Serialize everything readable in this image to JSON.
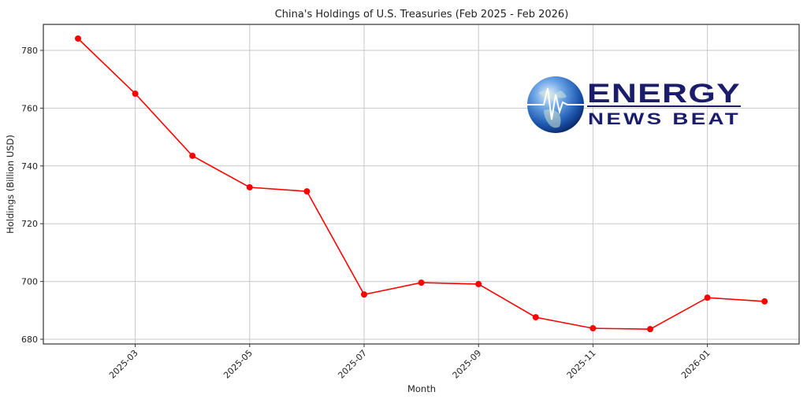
{
  "chart_data": {
    "type": "line",
    "title": "China's Holdings of U.S. Treasuries (Feb 2025 - Feb 2026)",
    "xlabel": "Month",
    "ylabel": "Holdings (Billion USD)",
    "x": [
      "2025-02",
      "2025-03",
      "2025-04",
      "2025-05",
      "2025-06",
      "2025-07",
      "2025-08",
      "2025-09",
      "2025-10",
      "2025-11",
      "2025-12",
      "2026-01",
      "2026-02"
    ],
    "series": [
      {
        "name": "Holdings",
        "color": "#ff0000",
        "marker": "circle",
        "values": [
          784.1,
          765.0,
          743.5,
          732.6,
          731.2,
          695.5,
          699.6,
          699.1,
          687.6,
          683.8,
          683.5,
          694.4,
          693.1
        ]
      }
    ],
    "x_tick_labels": [
      "2025-03",
      "2025-05",
      "2025-07",
      "2025-09",
      "2025-11",
      "2026-01"
    ],
    "y_ticks": [
      680,
      700,
      720,
      740,
      760,
      780
    ],
    "ylim": [
      678.3,
      788.8
    ],
    "grid": true,
    "legend": null
  },
  "watermark": {
    "line1": "ENERGY",
    "line2": "NEWS BEAT",
    "color": "#1b1d6b"
  }
}
